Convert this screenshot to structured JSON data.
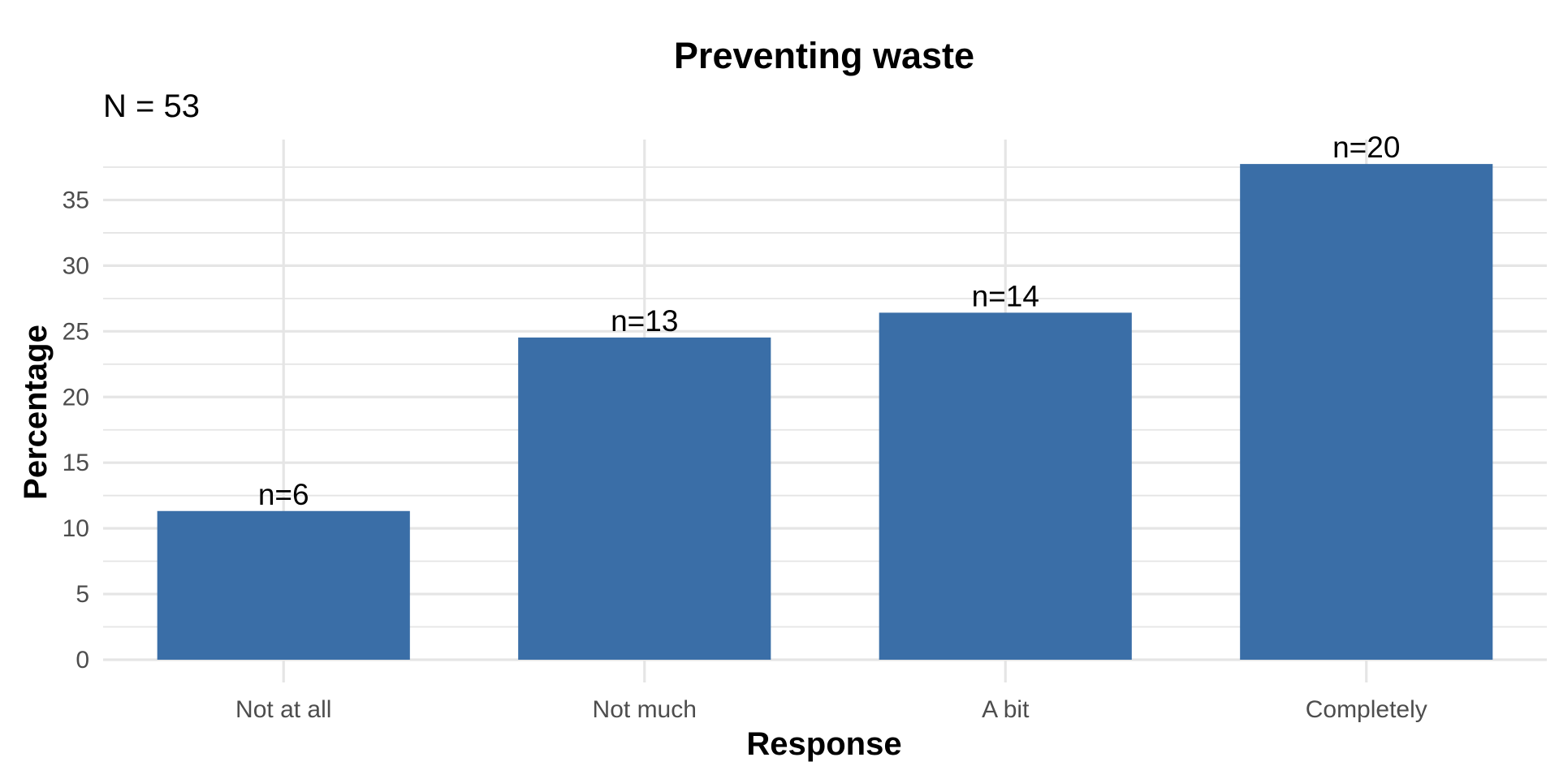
{
  "chart_data": {
    "type": "bar",
    "title": "Preventing waste",
    "subtitle": "N = 53",
    "xlabel": "Response",
    "ylabel": "Percentage",
    "categories": [
      "Not at all",
      "Not much",
      "A bit",
      "Completely"
    ],
    "values": [
      11.32,
      24.53,
      26.42,
      37.74
    ],
    "bar_labels": [
      "n=6",
      "n=13",
      "n=14",
      "n=20"
    ],
    "ylim": [
      0,
      39.6
    ],
    "yticks": [
      0,
      5,
      10,
      15,
      20,
      25,
      30,
      35
    ],
    "grid": true,
    "legend": "none"
  },
  "colors": {
    "bar": "#3a6ea7",
    "grid": "#e5e5e5",
    "tick_text": "#4d4d4d",
    "text": "#000000",
    "background": "#ffffff"
  }
}
